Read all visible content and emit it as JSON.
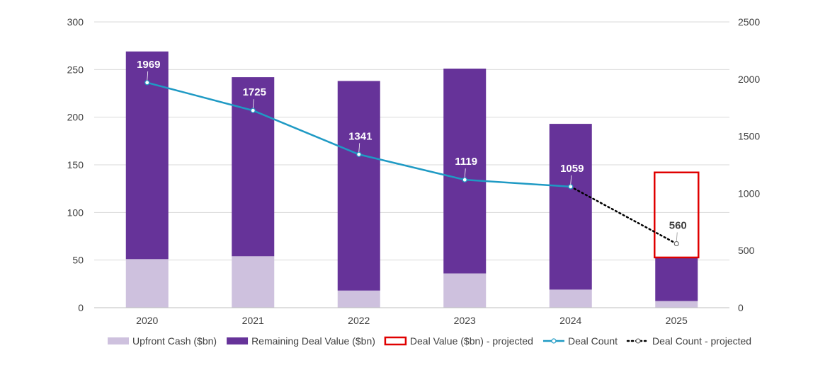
{
  "chart_data": {
    "type": "bar",
    "categories": [
      "2020",
      "2021",
      "2022",
      "2023",
      "2024",
      "2025"
    ],
    "series": [
      {
        "name": "Upfront Cash ($bn)",
        "kind": "stacked-bar",
        "axis": "left",
        "color": "#CEC1DE",
        "values": [
          51,
          54,
          18,
          36,
          19,
          7
        ]
      },
      {
        "name": "Remaining Deal Value ($bn)",
        "kind": "stacked-bar",
        "axis": "left",
        "color": "#663399",
        "values": [
          218,
          188,
          220,
          215,
          174,
          45
        ]
      },
      {
        "name": "Deal Value ($bn) - projected",
        "kind": "outlined-bar",
        "axis": "left",
        "color": "#E00000",
        "values": [
          null,
          null,
          null,
          null,
          null,
          142
        ]
      },
      {
        "name": "Deal Count",
        "kind": "line",
        "axis": "right",
        "color": "#1F9AC4",
        "values": [
          1969,
          1725,
          1341,
          1119,
          1059,
          null
        ]
      },
      {
        "name": "Deal Count - projected",
        "kind": "dotted-line",
        "axis": "right",
        "color": "#000000",
        "values": [
          null,
          null,
          null,
          null,
          1059,
          560
        ]
      }
    ],
    "data_labels": [
      "1969",
      "1725",
      "1341",
      "1119",
      "1059",
      "560"
    ],
    "y_left": {
      "min": 0,
      "max": 300,
      "ticks": [
        "0",
        "50",
        "100",
        "150",
        "200",
        "250",
        "300"
      ]
    },
    "y_right": {
      "min": 0,
      "max": 2500,
      "ticks": [
        "0",
        "500",
        "1000",
        "1500",
        "2000",
        "2500"
      ]
    },
    "grid": true,
    "legend_position": "bottom"
  }
}
